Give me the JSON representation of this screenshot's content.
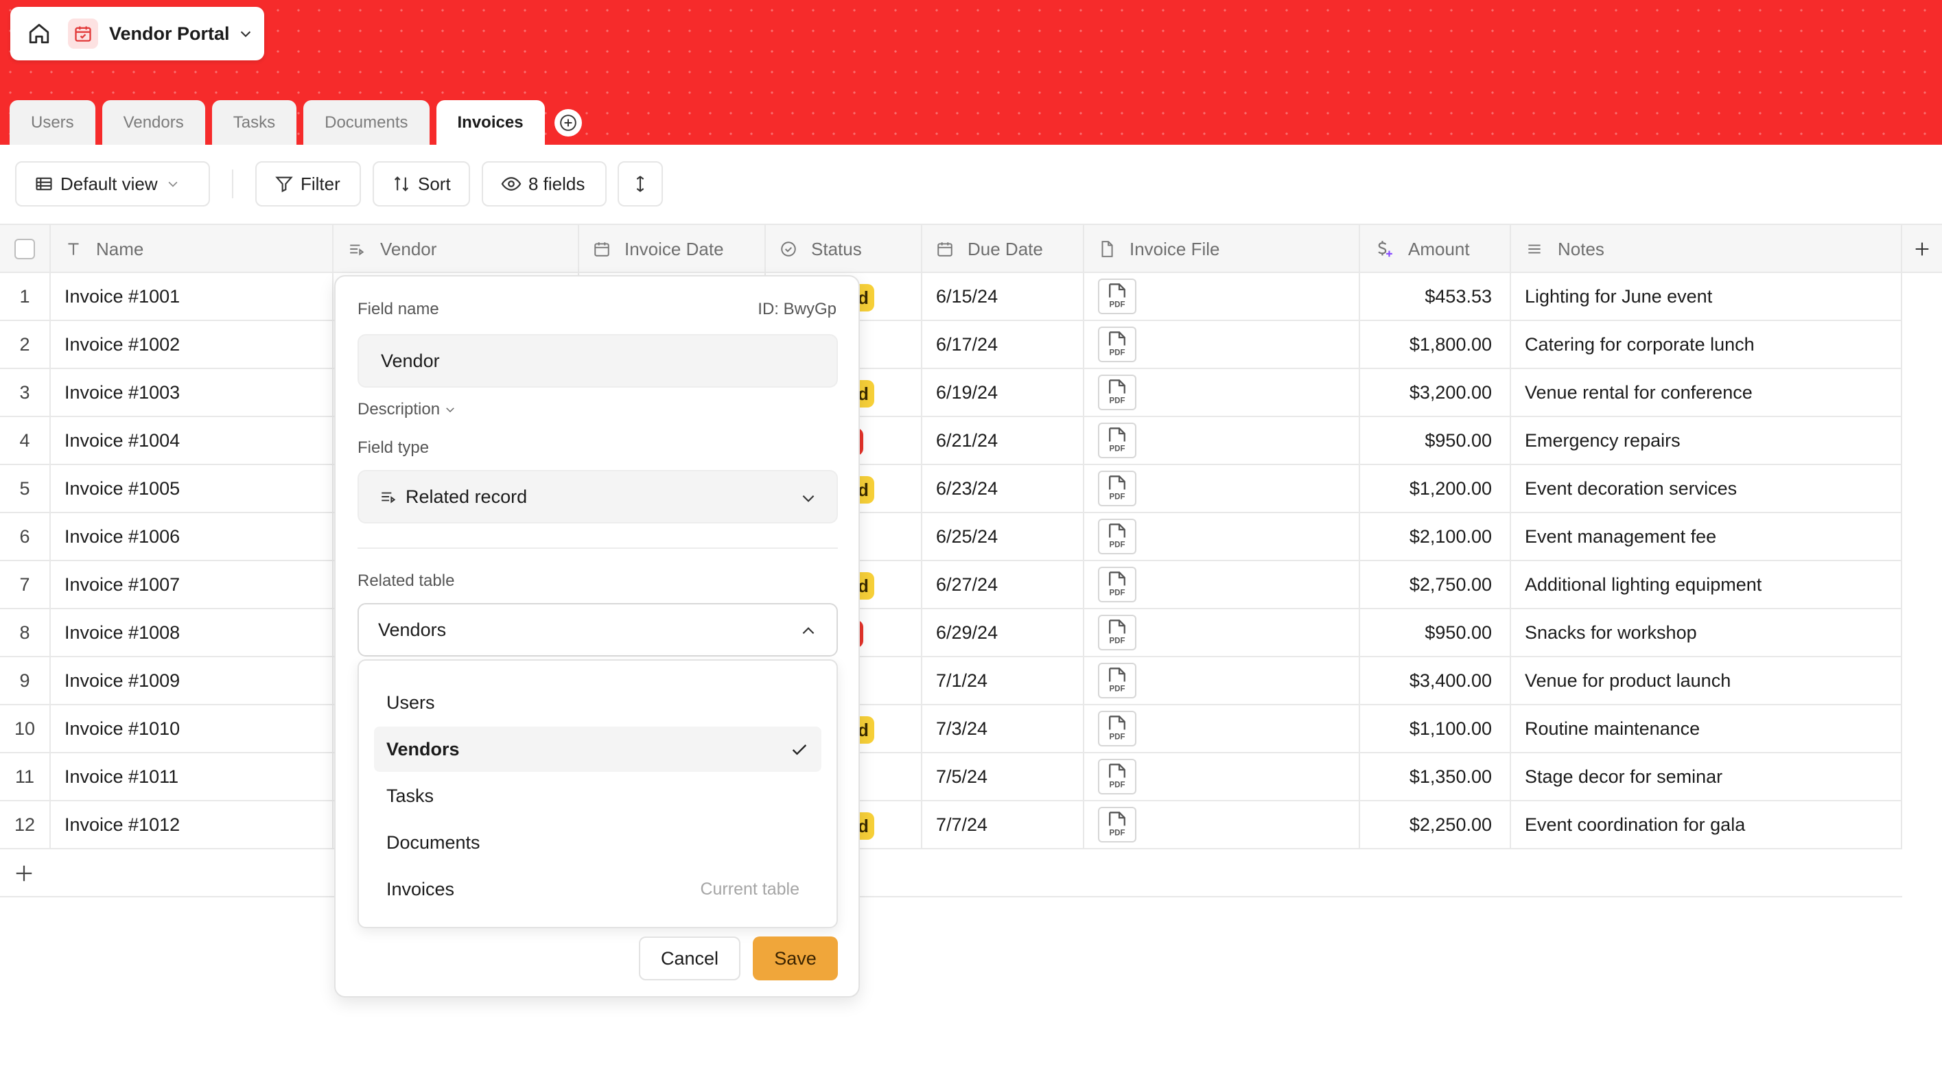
{
  "app": {
    "title": "Vendor Portal"
  },
  "tabs": [
    {
      "label": "Users",
      "active": false
    },
    {
      "label": "Vendors",
      "active": false
    },
    {
      "label": "Tasks",
      "active": false
    },
    {
      "label": "Documents",
      "active": false
    },
    {
      "label": "Invoices",
      "active": true
    }
  ],
  "toolbar": {
    "view_label": "Default view",
    "filter_label": "Filter",
    "sort_label": "Sort",
    "fields_label": "8 fields"
  },
  "columns": [
    "Name",
    "Vendor",
    "Invoice Date",
    "Status",
    "Due Date",
    "Invoice File",
    "Amount",
    "Notes"
  ],
  "rows": [
    {
      "n": "1",
      "name": "Invoice #1001",
      "due": "6/15/24",
      "amount": "$453.53",
      "notes": "Lighting for June event",
      "status_frag": "d",
      "status_color": "yellow"
    },
    {
      "n": "2",
      "name": "Invoice #1002",
      "due": "6/17/24",
      "amount": "$1,800.00",
      "notes": "Catering for corporate lunch",
      "status_frag": "",
      "status_color": ""
    },
    {
      "n": "3",
      "name": "Invoice #1003",
      "due": "6/19/24",
      "amount": "$3,200.00",
      "notes": "Venue rental for conference",
      "status_frag": "d",
      "status_color": "yellow"
    },
    {
      "n": "4",
      "name": "Invoice #1004",
      "due": "6/21/24",
      "amount": "$950.00",
      "notes": "Emergency repairs",
      "status_frag": "",
      "status_color": "red"
    },
    {
      "n": "5",
      "name": "Invoice #1005",
      "due": "6/23/24",
      "amount": "$1,200.00",
      "notes": "Event decoration services",
      "status_frag": "d",
      "status_color": "yellow"
    },
    {
      "n": "6",
      "name": "Invoice #1006",
      "due": "6/25/24",
      "amount": "$2,100.00",
      "notes": "Event management fee",
      "status_frag": "",
      "status_color": ""
    },
    {
      "n": "7",
      "name": "Invoice #1007",
      "due": "6/27/24",
      "amount": "$2,750.00",
      "notes": "Additional lighting equipment",
      "status_frag": "d",
      "status_color": "yellow"
    },
    {
      "n": "8",
      "name": "Invoice #1008",
      "due": "6/29/24",
      "amount": "$950.00",
      "notes": "Snacks for workshop",
      "status_frag": "",
      "status_color": "red"
    },
    {
      "n": "9",
      "name": "Invoice #1009",
      "due": "7/1/24",
      "amount": "$3,400.00",
      "notes": "Venue for product launch",
      "status_frag": "",
      "status_color": ""
    },
    {
      "n": "10",
      "name": "Invoice #1010",
      "due": "7/3/24",
      "amount": "$1,100.00",
      "notes": "Routine maintenance",
      "status_frag": "d",
      "status_color": "yellow"
    },
    {
      "n": "11",
      "name": "Invoice #1011",
      "due": "7/5/24",
      "amount": "$1,350.00",
      "notes": "Stage decor for seminar",
      "status_frag": "",
      "status_color": ""
    },
    {
      "n": "12",
      "name": "Invoice #1012",
      "due": "7/7/24",
      "amount": "$2,250.00",
      "notes": "Event coordination for gala",
      "status_frag": "d",
      "status_color": "yellow"
    }
  ],
  "file_label": "PDF",
  "status_colors": {
    "yellow": "#f7d038",
    "red": "#e5332a"
  },
  "popover": {
    "field_name_label": "Field name",
    "field_id": "ID: BwyGp",
    "field_name_value": "Vendor",
    "description_label": "Description",
    "field_type_label": "Field type",
    "field_type_value": "Related record",
    "related_table_label": "Related table",
    "related_table_value": "Vendors",
    "options": [
      {
        "label": "Users",
        "selected": false,
        "meta": ""
      },
      {
        "label": "Vendors",
        "selected": true,
        "meta": ""
      },
      {
        "label": "Tasks",
        "selected": false,
        "meta": ""
      },
      {
        "label": "Documents",
        "selected": false,
        "meta": ""
      },
      {
        "label": "Invoices",
        "selected": false,
        "meta": "Current table"
      }
    ],
    "cancel_label": "Cancel",
    "save_label": "Save"
  },
  "colors": {
    "header_red": "#f62b2b",
    "accent_orange": "#f0a63a"
  }
}
